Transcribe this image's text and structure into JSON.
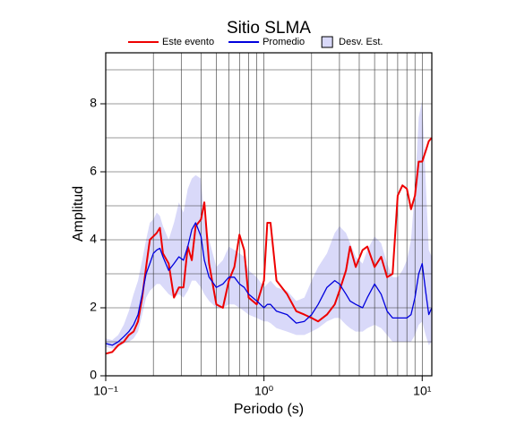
{
  "chart_data": {
    "type": "line",
    "title": "Sitio SLMA",
    "xlabel": "Periodo (s)",
    "ylabel": "Amplitud",
    "xscale": "log",
    "grid": true,
    "xlim": [
      0.1,
      11.5
    ],
    "ylim": [
      0,
      9.5
    ],
    "xticks": [
      {
        "value": 0.1,
        "label": "10⁻¹"
      },
      {
        "value": 1,
        "label": "10⁰"
      },
      {
        "value": 10,
        "label": "10¹"
      }
    ],
    "yticks": [
      0,
      2,
      4,
      6,
      8
    ],
    "x": [
      0.1,
      0.11,
      0.12,
      0.13,
      0.14,
      0.15,
      0.16,
      0.17,
      0.18,
      0.19,
      0.2,
      0.21,
      0.22,
      0.23,
      0.25,
      0.27,
      0.29,
      0.31,
      0.33,
      0.35,
      0.37,
      0.4,
      0.42,
      0.45,
      0.5,
      0.55,
      0.6,
      0.65,
      0.7,
      0.75,
      0.8,
      0.9,
      1.0,
      1.05,
      1.1,
      1.2,
      1.4,
      1.6,
      1.8,
      2.0,
      2.2,
      2.5,
      2.8,
      3.0,
      3.3,
      3.5,
      3.8,
      4.2,
      4.5,
      5.0,
      5.5,
      6.0,
      6.5,
      7.0,
      7.5,
      8.0,
      8.5,
      9.0,
      9.5,
      10.0,
      10.5,
      11.0,
      11.5
    ],
    "series": [
      {
        "name": "Este evento",
        "color": "#ee0000",
        "values": [
          0.65,
          0.7,
          0.9,
          1.0,
          1.2,
          1.3,
          1.6,
          2.3,
          3.2,
          4.0,
          4.1,
          4.2,
          4.35,
          3.6,
          3.3,
          2.3,
          2.6,
          2.6,
          3.8,
          3.4,
          4.4,
          4.6,
          5.1,
          3.3,
          2.1,
          2.0,
          2.8,
          3.2,
          4.15,
          3.7,
          2.3,
          2.1,
          2.8,
          4.5,
          4.5,
          2.8,
          2.4,
          1.9,
          1.8,
          1.7,
          1.6,
          1.8,
          2.1,
          2.5,
          3.1,
          3.8,
          3.2,
          3.7,
          3.8,
          3.2,
          3.5,
          2.9,
          3.0,
          5.3,
          5.6,
          5.5,
          4.9,
          5.3,
          6.3,
          6.3,
          6.6,
          6.9,
          7.0
        ]
      },
      {
        "name": "Promedio",
        "color": "#0000dd",
        "values": [
          0.95,
          0.9,
          1.0,
          1.15,
          1.3,
          1.5,
          1.8,
          2.4,
          3.0,
          3.3,
          3.6,
          3.7,
          3.75,
          3.5,
          3.1,
          3.3,
          3.5,
          3.4,
          3.8,
          4.3,
          4.5,
          4.1,
          3.4,
          2.9,
          2.6,
          2.7,
          2.9,
          2.9,
          2.7,
          2.6,
          2.4,
          2.2,
          2.0,
          2.1,
          2.1,
          1.9,
          1.8,
          1.55,
          1.6,
          1.8,
          2.1,
          2.6,
          2.8,
          2.7,
          2.4,
          2.2,
          2.1,
          2.0,
          2.3,
          2.7,
          2.4,
          1.9,
          1.7,
          1.7,
          1.7,
          1.7,
          1.8,
          2.3,
          3.0,
          3.3,
          2.5,
          1.8,
          2.0
        ]
      },
      {
        "name": "Desv. Est.",
        "color": "#d9d9f9",
        "lower": [
          0.85,
          0.8,
          0.85,
          0.95,
          1.0,
          1.1,
          1.3,
          1.8,
          2.3,
          2.5,
          2.6,
          2.7,
          2.7,
          2.6,
          2.4,
          2.3,
          2.4,
          2.3,
          2.5,
          2.8,
          2.8,
          2.6,
          2.4,
          2.2,
          2.0,
          2.0,
          2.1,
          2.1,
          2.0,
          1.9,
          1.8,
          1.7,
          1.6,
          1.6,
          1.55,
          1.4,
          1.3,
          1.2,
          1.2,
          1.3,
          1.4,
          1.6,
          1.7,
          1.7,
          1.5,
          1.4,
          1.3,
          1.3,
          1.4,
          1.5,
          1.4,
          1.2,
          1.0,
          1.0,
          1.0,
          1.0,
          1.0,
          1.2,
          1.5,
          1.6,
          1.2,
          0.9,
          1.0
        ],
        "upper": [
          1.1,
          1.05,
          1.2,
          1.5,
          1.9,
          2.4,
          2.8,
          3.4,
          4.0,
          4.5,
          4.6,
          4.8,
          4.7,
          4.4,
          4.0,
          4.5,
          5.1,
          4.8,
          5.5,
          5.8,
          5.9,
          5.8,
          4.6,
          4.0,
          3.2,
          3.4,
          3.8,
          3.7,
          3.6,
          3.5,
          3.1,
          2.9,
          2.6,
          2.7,
          2.8,
          2.6,
          2.5,
          2.2,
          2.3,
          2.8,
          3.2,
          3.6,
          4.2,
          4.4,
          4.2,
          3.9,
          3.5,
          3.3,
          3.7,
          4.1,
          3.9,
          3.3,
          2.9,
          2.9,
          3.1,
          3.4,
          4.0,
          5.5,
          7.6,
          8.1,
          5.8,
          3.7,
          3.5
        ]
      }
    ]
  }
}
